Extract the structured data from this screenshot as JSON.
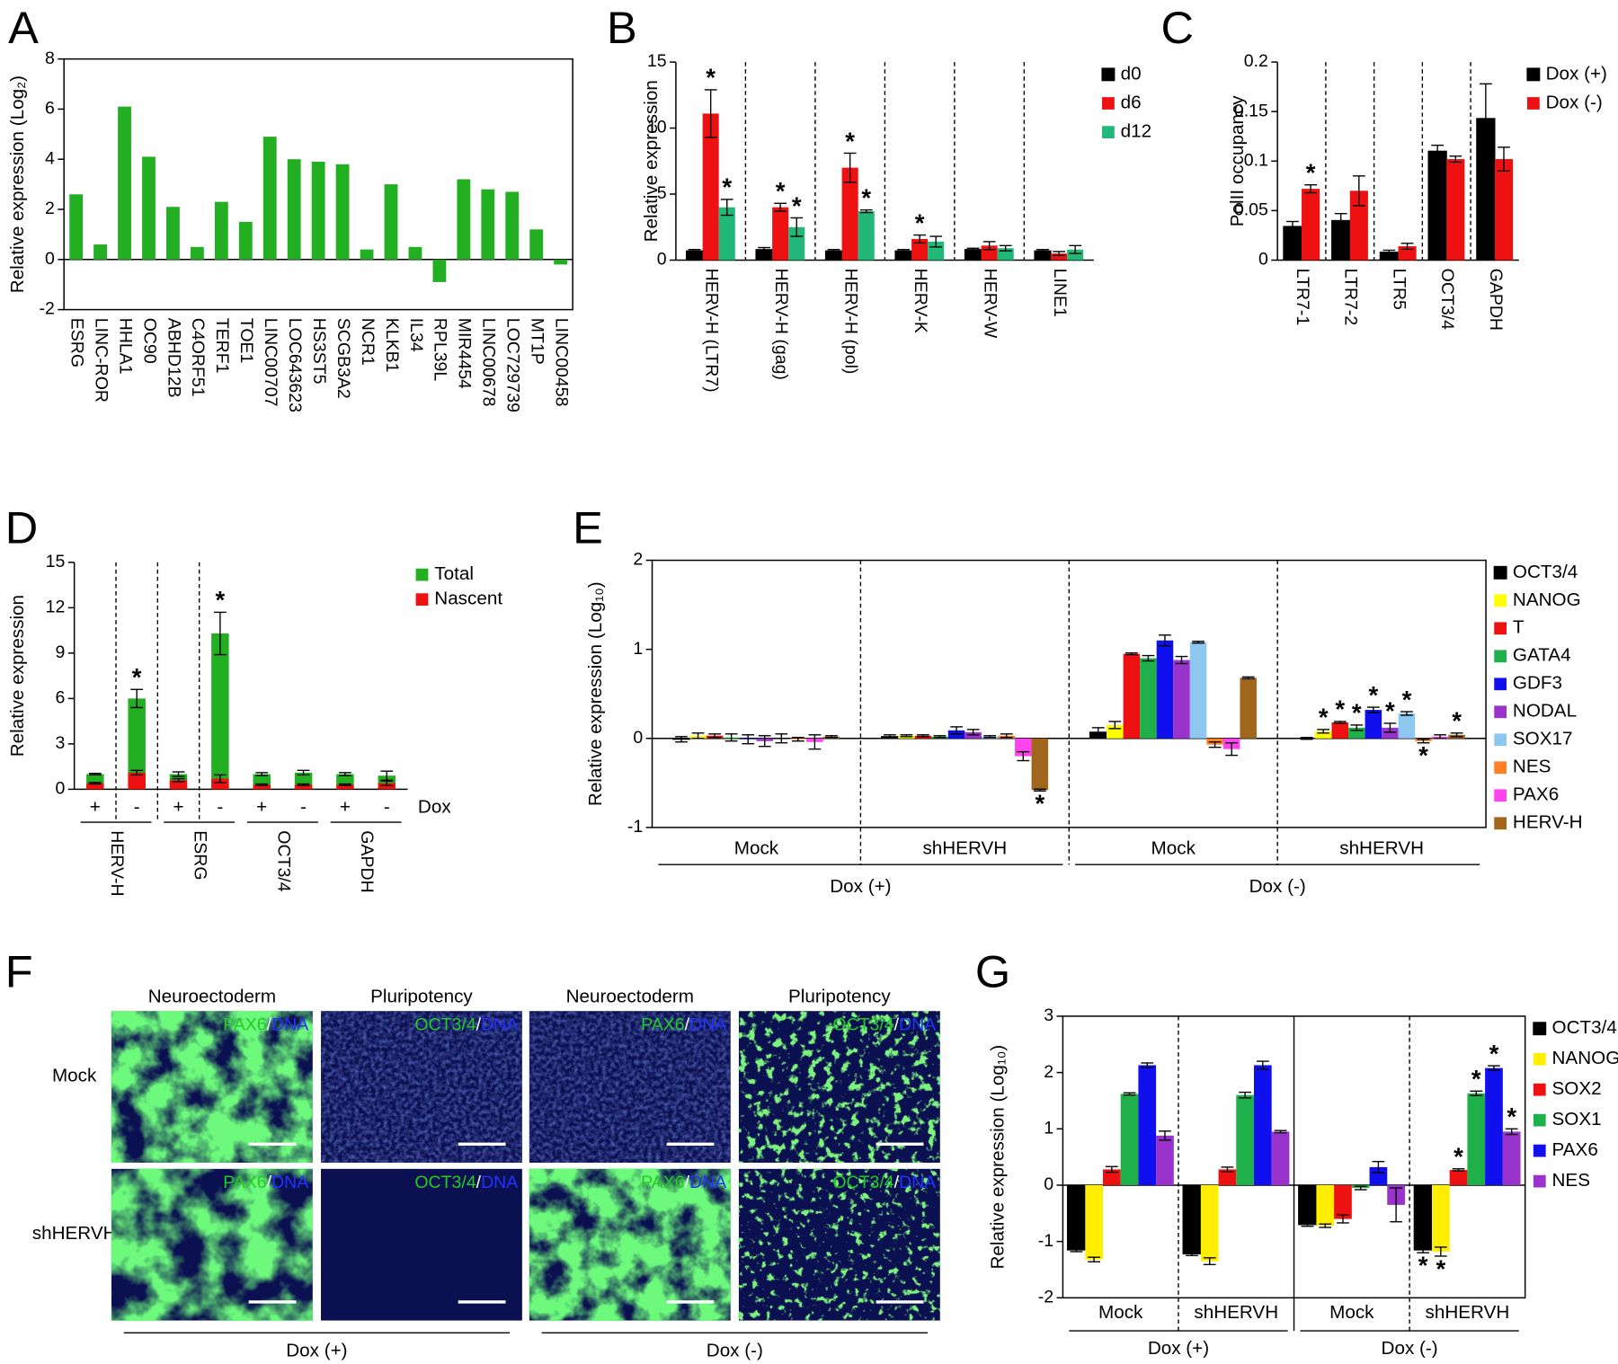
{
  "chart_data": [
    {
      "panel": "A",
      "type": "bar",
      "y_label": "Relative expression (Log₂)",
      "categories": [
        "ESRG",
        "LINC-ROR",
        "HHLA1",
        "OC90",
        "ABHD12B",
        "C4ORF51",
        "TERF1",
        "TOE1",
        "LINC00707",
        "LOC643623",
        "HS3ST5",
        "SCGB3A2",
        "NCR1",
        "KLKB1",
        "IL34",
        "RPL39L",
        "MIR4454",
        "LINC00678",
        "LOC729739",
        "MT1P",
        "LINC00458"
      ],
      "values": [
        2.6,
        0.6,
        6.1,
        4.1,
        2.1,
        0.5,
        2.3,
        1.5,
        4.9,
        4.0,
        3.9,
        3.8,
        0.4,
        3.0,
        0.5,
        -0.9,
        3.2,
        2.8,
        2.7,
        1.2,
        -0.2
      ],
      "color": "#22b022",
      "ylim": [
        -2,
        8
      ],
      "yticks": [
        -2,
        0,
        2,
        4,
        6,
        8
      ],
      "frame": true
    },
    {
      "panel": "B",
      "type": "grouped",
      "y_label": "Relative expression",
      "categories": [
        "HERV-H (LTR7)",
        "HERV-H (gag)",
        "HERV-H (pol)",
        "HERV-K",
        "HERV-W",
        "LINE1"
      ],
      "series": [
        {
          "name": "d0",
          "color": "#000000",
          "values": [
            0.7,
            0.8,
            0.7,
            0.7,
            0.8,
            0.7
          ],
          "errors": [
            0.1,
            0.15,
            0.1,
            0.1,
            0.1,
            0.1
          ],
          "stars": [
            null,
            null,
            null,
            null,
            null,
            null
          ]
        },
        {
          "name": "d6",
          "color": "#ee1111",
          "values": [
            11.1,
            4.0,
            7.0,
            1.6,
            1.1,
            0.5
          ],
          "errors": [
            1.8,
            0.3,
            1.1,
            0.3,
            0.3,
            0.15
          ],
          "stars": [
            "*",
            "*",
            "*",
            "*",
            null,
            null
          ]
        },
        {
          "name": "d12",
          "color": "#22b87a",
          "values": [
            4.0,
            2.5,
            3.7,
            1.4,
            0.9,
            0.8
          ],
          "errors": [
            0.6,
            0.7,
            0.1,
            0.4,
            0.2,
            0.3
          ],
          "stars": [
            "*",
            "*",
            "*",
            null,
            null,
            null
          ]
        }
      ],
      "ylim": [
        0,
        15
      ],
      "yticks": [
        0,
        5,
        10,
        15
      ],
      "dividers": [
        "dashed",
        "dashed",
        "dashed",
        "dashed",
        "dashed"
      ],
      "legend": "right"
    },
    {
      "panel": "C",
      "type": "grouped",
      "y_label": "PolII occupancy",
      "categories": [
        "LTR7-1",
        "LTR7-2",
        "LTR5",
        "OCT3/4",
        "GAPDH"
      ],
      "series": [
        {
          "name": "Dox (+)",
          "color": "#000000",
          "values": [
            0.034,
            0.04,
            0.008,
            0.11,
            0.143
          ],
          "errors": [
            0.005,
            0.007,
            0.002,
            0.006,
            0.035
          ],
          "stars": [
            null,
            null,
            null,
            null,
            null
          ]
        },
        {
          "name": "Dox (-)",
          "color": "#ee1111",
          "values": [
            0.072,
            0.07,
            0.014,
            0.102,
            0.102
          ],
          "errors": [
            0.004,
            0.015,
            0.003,
            0.003,
            0.012
          ],
          "stars": [
            "*",
            null,
            null,
            null,
            null
          ]
        }
      ],
      "ylim": [
        0,
        0.2
      ],
      "yticks": [
        0,
        0.05,
        0.1,
        0.15,
        0.2
      ],
      "dividers": [
        "dashed",
        "dashed",
        "dashed",
        "dashed"
      ],
      "legend": "right"
    },
    {
      "panel": "D",
      "type": "overlay",
      "y_label": "Relative expression",
      "x_label": "Dox",
      "categories": [
        "+",
        "-",
        "+",
        "-",
        "+",
        "-",
        "+",
        "-"
      ],
      "groups": [
        "HERV-H",
        "ESRG",
        "OCT3/4",
        "GAPDH"
      ],
      "series": [
        {
          "name": "Total",
          "color": "#22b022",
          "values": [
            1.0,
            6.0,
            1.0,
            10.3,
            1.0,
            1.1,
            1.0,
            0.9
          ],
          "errors": [
            0.05,
            0.6,
            0.15,
            1.4,
            0.1,
            0.15,
            0.1,
            0.3
          ],
          "stars": [
            null,
            "*",
            null,
            "*",
            null,
            null,
            null,
            null
          ]
        },
        {
          "name": "Nascent",
          "color": "#ee1111",
          "values": [
            0.4,
            1.1,
            0.6,
            0.7,
            0.3,
            0.3,
            0.3,
            0.4
          ],
          "errors": [
            0.05,
            0.15,
            0.1,
            0.25,
            0.05,
            0.05,
            0.05,
            0.15
          ],
          "stars": [
            null,
            null,
            null,
            null,
            null,
            null,
            null,
            null
          ]
        }
      ],
      "ylim": [
        0,
        15
      ],
      "yticks": [
        0,
        3,
        6,
        9,
        12,
        15
      ],
      "dividers": [
        "dashed",
        "dashed",
        "dashed"
      ],
      "legend": "right"
    },
    {
      "panel": "E",
      "type": "grouped",
      "y_label": "Relative expression (Log₁₀)",
      "categories": [
        "Mock",
        "shHERVH",
        "Mock",
        "shHERVH"
      ],
      "supergroups": [
        "Dox (+)",
        "Dox (-)"
      ],
      "series": [
        {
          "name": "OCT3/4",
          "color": "#000000",
          "values": [
            -0.01,
            0.02,
            0.07,
            0.0
          ],
          "errors": [
            0.03,
            0.02,
            0.05,
            0.01
          ],
          "stars": [
            null,
            null,
            null,
            null
          ]
        },
        {
          "name": "NANOG",
          "color": "#ffff00",
          "values": [
            0.03,
            0.03,
            0.15,
            0.08
          ],
          "errors": [
            0.03,
            0.01,
            0.04,
            0.02
          ],
          "stars": [
            null,
            null,
            null,
            "*"
          ]
        },
        {
          "name": "T",
          "color": "#ee1111",
          "values": [
            0.03,
            0.03,
            0.95,
            0.18
          ],
          "errors": [
            0.02,
            0.01,
            0.01,
            0.01
          ],
          "stars": [
            null,
            null,
            null,
            "*"
          ]
        },
        {
          "name": "GATA4",
          "color": "#1fb04c",
          "values": [
            0.01,
            0.02,
            0.9,
            0.12
          ],
          "errors": [
            0.04,
            0.01,
            0.03,
            0.03
          ],
          "stars": [
            null,
            null,
            null,
            "*"
          ]
        },
        {
          "name": "GDF3",
          "color": "#1010ee",
          "values": [
            -0.01,
            0.09,
            1.1,
            0.32
          ],
          "errors": [
            0.05,
            0.04,
            0.06,
            0.03
          ],
          "stars": [
            null,
            null,
            null,
            "*"
          ]
        },
        {
          "name": "NODAL",
          "color": "#9933cc",
          "values": [
            -0.03,
            0.07,
            0.88,
            0.12
          ],
          "errors": [
            0.06,
            0.03,
            0.04,
            0.05
          ],
          "stars": [
            null,
            null,
            null,
            "*"
          ]
        },
        {
          "name": "SOX17",
          "color": "#8ec8f0",
          "values": [
            0.0,
            0.02,
            1.08,
            0.28
          ],
          "errors": [
            0.05,
            0.01,
            0.01,
            0.02
          ],
          "stars": [
            null,
            null,
            null,
            "*"
          ]
        },
        {
          "name": "NES",
          "color": "#ff7f27",
          "values": [
            -0.01,
            0.03,
            -0.07,
            -0.03
          ],
          "errors": [
            0.02,
            0.02,
            0.03,
            0.02
          ],
          "stars": [
            null,
            null,
            null,
            "*"
          ]
        },
        {
          "name": "PAX6",
          "color": "#ff44ee",
          "values": [
            -0.04,
            -0.2,
            -0.12,
            0.02
          ],
          "errors": [
            0.08,
            0.05,
            0.07,
            0.02
          ],
          "stars": [
            null,
            null,
            null,
            null
          ]
        },
        {
          "name": "HERV-H",
          "color": "#a0661e",
          "values": [
            0.02,
            -0.58,
            0.68,
            0.04
          ],
          "errors": [
            0.01,
            0.01,
            0.01,
            0.02
          ],
          "stars": [
            null,
            "*",
            null,
            "*"
          ]
        }
      ],
      "ylim": [
        -1,
        2
      ],
      "yticks": [
        -1,
        0,
        1,
        2
      ],
      "dividers": [
        "dashed",
        "dashed",
        "dashed"
      ],
      "legend": "right",
      "frame": true
    },
    {
      "panel": "G",
      "type": "grouped",
      "y_label": "Relative expression (Log₁₀)",
      "categories": [
        "Mock",
        "shHERVH",
        "Mock",
        "shHERVH"
      ],
      "supergroups": [
        "Dox (+)",
        "Dox (-)"
      ],
      "series": [
        {
          "name": "OCT3/4",
          "color": "#000000",
          "values": [
            -1.15,
            -1.22,
            -0.7,
            -1.15
          ],
          "errors": [
            0.03,
            0.03,
            0.03,
            0.05
          ],
          "stars": [
            null,
            null,
            null,
            "*"
          ]
        },
        {
          "name": "NANOG",
          "color": "#ffee00",
          "values": [
            -1.32,
            -1.35,
            -0.72,
            -1.18
          ],
          "errors": [
            0.04,
            0.06,
            0.03,
            0.08
          ],
          "stars": [
            null,
            null,
            null,
            "*"
          ]
        },
        {
          "name": "SOX2",
          "color": "#ee1111",
          "values": [
            0.28,
            0.28,
            -0.6,
            0.27
          ],
          "errors": [
            0.05,
            0.04,
            0.07,
            0.02
          ],
          "stars": [
            null,
            null,
            null,
            "*"
          ]
        },
        {
          "name": "SOX1",
          "color": "#1fb04c",
          "values": [
            1.62,
            1.6,
            -0.05,
            1.63
          ],
          "errors": [
            0.02,
            0.05,
            0.03,
            0.04
          ],
          "stars": [
            null,
            null,
            null,
            "*"
          ]
        },
        {
          "name": "PAX6",
          "color": "#1010ee",
          "values": [
            2.13,
            2.13,
            0.32,
            2.08
          ],
          "errors": [
            0.04,
            0.07,
            0.1,
            0.04
          ],
          "stars": [
            null,
            null,
            null,
            "*"
          ]
        },
        {
          "name": "NES",
          "color": "#9933cc",
          "values": [
            0.88,
            0.95,
            -0.35,
            0.95
          ],
          "errors": [
            0.08,
            0.02,
            0.3,
            0.05
          ],
          "stars": [
            null,
            null,
            null,
            "*"
          ]
        }
      ],
      "ylim": [
        -2,
        3
      ],
      "yticks": [
        -2,
        -1,
        0,
        1,
        2,
        3
      ],
      "dividers": [
        "dashed",
        "solid",
        "dashed"
      ],
      "legend": "right",
      "frame": true
    }
  ],
  "panel_f": {
    "panel": "F",
    "columns": [
      "Neuroectoderm",
      "Pluripotency",
      "Neuroectoderm",
      "Pluripotency"
    ],
    "rows": [
      "Mock",
      "shHERVH"
    ],
    "stains": [
      [
        {
          "marker": "PAX6",
          "sep": "/",
          "dna": "DNA"
        },
        {
          "marker": "OCT3/4",
          "sep": "/",
          "dna": "DNA"
        },
        {
          "marker": "PAX6",
          "sep": "/",
          "dna": "DNA"
        },
        {
          "marker": "OCT3/4",
          "sep": "/",
          "dna": "DNA"
        }
      ],
      [
        {
          "marker": "PAX6",
          "sep": "/",
          "dna": "DNA"
        },
        {
          "marker": "OCT3/4",
          "sep": "/",
          "dna": "DNA"
        },
        {
          "marker": "PAX6",
          "sep": "/",
          "dna": "DNA"
        },
        {
          "marker": "OCT3/4",
          "sep": "/",
          "dna": "DNA"
        }
      ]
    ],
    "groups": [
      "Dox (+)",
      "Dox (-)"
    ]
  }
}
